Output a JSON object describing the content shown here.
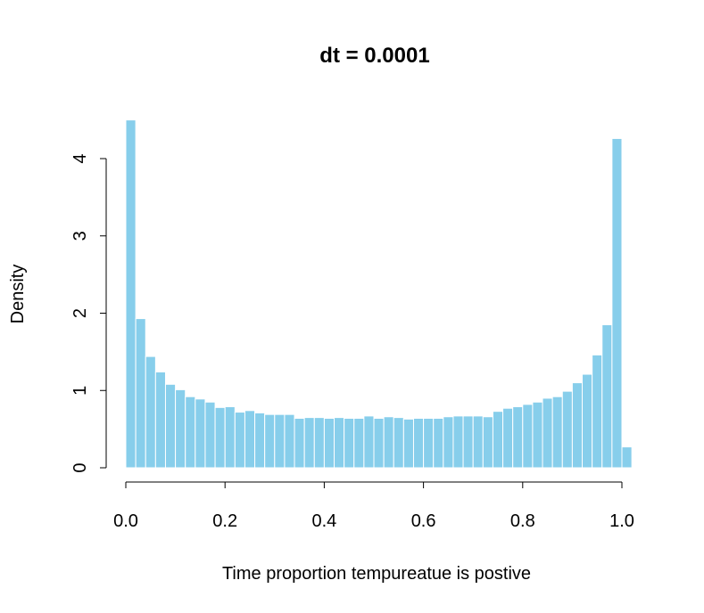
{
  "chart_data": {
    "type": "bar",
    "title": "dt = 0.0001",
    "xlabel": "Time proportion tempureatue is postive",
    "ylabel": "Density",
    "xlim": [
      0.0,
      1.02
    ],
    "ylim": [
      0,
      4.5
    ],
    "xticks": [
      "0.0",
      "0.2",
      "0.4",
      "0.6",
      "0.8",
      "1.0"
    ],
    "yticks": [
      "0",
      "1",
      "2",
      "3",
      "4"
    ],
    "bin_width": 0.02,
    "bin_starts": [
      0.0,
      0.02,
      0.04,
      0.06,
      0.08,
      0.1,
      0.12,
      0.14,
      0.16,
      0.18,
      0.2,
      0.22,
      0.24,
      0.26,
      0.28,
      0.3,
      0.32,
      0.34,
      0.36,
      0.38,
      0.4,
      0.42,
      0.44,
      0.46,
      0.48,
      0.5,
      0.52,
      0.54,
      0.56,
      0.58,
      0.6,
      0.62,
      0.64,
      0.66,
      0.68,
      0.7,
      0.72,
      0.74,
      0.76,
      0.78,
      0.8,
      0.82,
      0.84,
      0.86,
      0.88,
      0.9,
      0.92,
      0.94,
      0.96,
      0.98,
      1.0
    ],
    "values": [
      4.5,
      1.93,
      1.44,
      1.24,
      1.08,
      1.01,
      0.92,
      0.89,
      0.85,
      0.78,
      0.79,
      0.72,
      0.74,
      0.71,
      0.69,
      0.69,
      0.69,
      0.64,
      0.65,
      0.65,
      0.64,
      0.65,
      0.64,
      0.64,
      0.67,
      0.64,
      0.66,
      0.65,
      0.63,
      0.64,
      0.64,
      0.64,
      0.66,
      0.67,
      0.67,
      0.67,
      0.66,
      0.73,
      0.77,
      0.79,
      0.82,
      0.85,
      0.9,
      0.92,
      0.99,
      1.1,
      1.21,
      1.46,
      1.85,
      4.26,
      0.27
    ],
    "bar_color": "#87ceeb",
    "bar_border": "#ffffff",
    "grid": false,
    "legend": "none"
  }
}
